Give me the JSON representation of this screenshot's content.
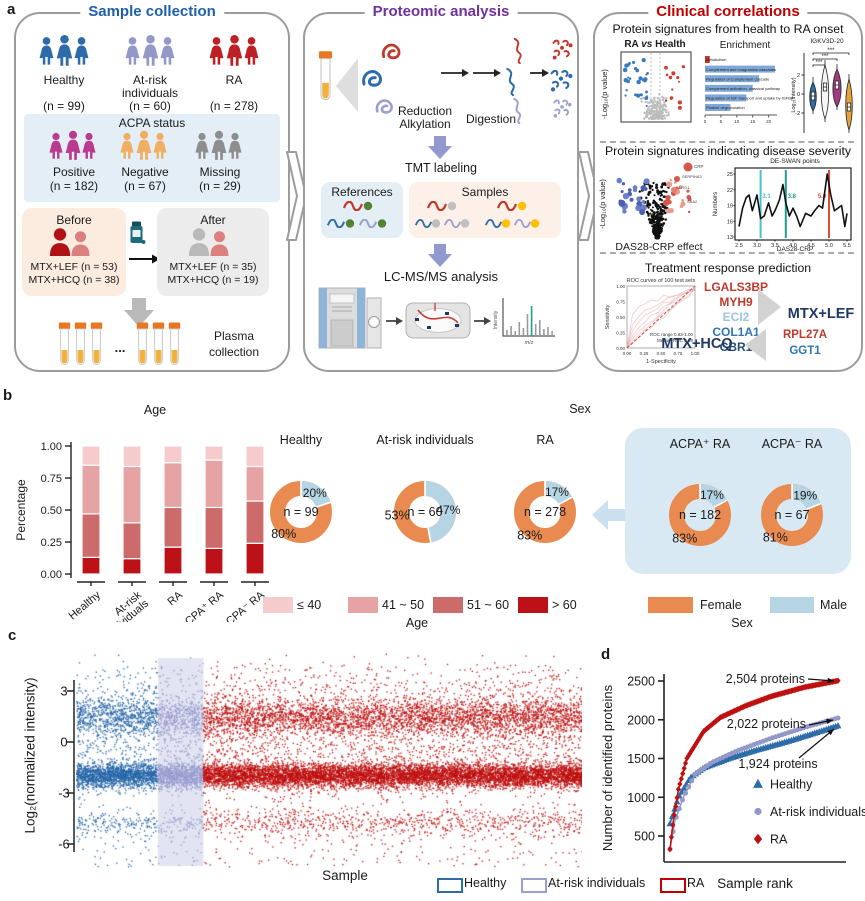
{
  "panels": {
    "a": "a",
    "b": "b",
    "c": "c",
    "d": "d"
  },
  "panel_a": {
    "sample_collection": {
      "title": "Sample collection",
      "accent": "#1d5fae",
      "groups": [
        {
          "label": "Healthy",
          "n": "(n = 99)",
          "color": "#2d6ca8"
        },
        {
          "label": "At-risk",
          "label2": "individuals",
          "n": "(n = 60)",
          "color": "#9398c8"
        },
        {
          "label": "RA",
          "n": "(n = 278)",
          "color": "#bf2026"
        }
      ],
      "acpa": {
        "title": "ACPA status",
        "groups": [
          {
            "label": "Positive",
            "n": "(n = 182)",
            "color": "#b93a8f"
          },
          {
            "label": "Negative",
            "n": "(n = 67)",
            "color": "#efae62"
          },
          {
            "label": "Missing",
            "n": "(n = 29)",
            "color": "#8e8e8e"
          }
        ]
      },
      "before": {
        "title": "Before",
        "line1": "MTX+LEF  (n = 53)",
        "line2": "MTX+HCQ (n = 38)"
      },
      "after": {
        "title": "After",
        "line1": "MTX+LEF  (n = 35)",
        "line2": "MTX+HCQ (n = 19)"
      },
      "dots": "...",
      "plasma1": "Plasma",
      "plasma2": "collection"
    },
    "proteomic": {
      "title": "Proteomic analysis",
      "accent": "#7030a0",
      "step1a": "Reduction",
      "step1b": "Alkylation",
      "step2": "Digestion",
      "tmt": "TMT labeling",
      "references": "References",
      "samples": "Samples",
      "lcms": "LC-MS/MS analysis",
      "spec_y": "Intensity",
      "spec_x": "m/z"
    },
    "clinical": {
      "title": "Clinical correlations",
      "accent": "#c00000",
      "s1_heading": "Protein signatures from health to RA onset",
      "volcano1": {
        "t1": "RA ",
        "t2": "vs",
        "t3": " Health",
        "ylabel": "-Log₁₀(p value)"
      },
      "enrichment": {
        "title": "Enrichment",
        "bars": [
          {
            "label": "Metabolism",
            "value": 1.5
          },
          {
            "label": "Complement and coagulation cascades",
            "value": 22
          },
          {
            "label": "Regulation of Complement cascade",
            "value": 17
          },
          {
            "label": "Complement activation, classical pathway",
            "value": 15
          },
          {
            "label": "Regulation of IGF transport and uptake by IGFBPs",
            "value": 13
          },
          {
            "label": "Platelet degranulation",
            "value": 8
          }
        ],
        "xticks": [
          "0",
          "5",
          "10",
          "15",
          "20"
        ]
      },
      "violin": {
        "title": "IGKV3D-20",
        "ylabel": "Log₂(intensity)",
        "yticks": [
          "2",
          "0",
          "-2"
        ],
        "sig": "***",
        "colors": [
          "#2d6ca8",
          "#f5f5f5",
          "#a23a80",
          "#e5a13e"
        ]
      },
      "s2_heading": "Protein signatures indicating disease severity",
      "volcano2": {
        "xlabel": "DAS28-CRP effect",
        "ylabel": "-Log₁₀(p value)",
        "gene_labels": [
          "CRP",
          "SERPINA3",
          "LRG1",
          "SAA2"
        ]
      },
      "deswan": {
        "title": "DE-SWAN points",
        "ylabel": "Numbers",
        "xlabel": "DAS28-CRP",
        "yticks": [
          13,
          16,
          19,
          22,
          25
        ],
        "xticks": [
          "2.5",
          "3.0",
          "3.5",
          "4.0",
          "4.5",
          "5.0",
          "5.5"
        ],
        "vlines": [
          {
            "x": 3.1,
            "label": "3.1",
            "color": "#49c0d2"
          },
          {
            "x": 3.8,
            "label": "3.8",
            "color": "#1b9e8f"
          },
          {
            "x": 5.0,
            "label": "5.0",
            "color": "#e04b38"
          }
        ],
        "points": [
          [
            2.5,
            15
          ],
          [
            2.6,
            18.5
          ],
          [
            2.7,
            20.5
          ],
          [
            2.78,
            21
          ],
          [
            2.87,
            18
          ],
          [
            3.0,
            21
          ],
          [
            3.1,
            16.5
          ],
          [
            3.2,
            17
          ],
          [
            3.32,
            19.5
          ],
          [
            3.42,
            17
          ],
          [
            3.5,
            18
          ],
          [
            3.62,
            20
          ],
          [
            3.72,
            23
          ],
          [
            3.8,
            19.5
          ],
          [
            3.9,
            17
          ],
          [
            4.0,
            18.5
          ],
          [
            4.1,
            17
          ],
          [
            4.2,
            15
          ],
          [
            4.35,
            17.5
          ],
          [
            4.5,
            17
          ],
          [
            4.6,
            18
          ],
          [
            4.72,
            19
          ],
          [
            4.82,
            18.5
          ],
          [
            4.95,
            25
          ],
          [
            5.05,
            21
          ],
          [
            5.15,
            18
          ],
          [
            5.25,
            18.5
          ],
          [
            5.35,
            19
          ],
          [
            5.44,
            15
          ],
          [
            5.5,
            17.5
          ]
        ]
      },
      "s3_heading": "Treatment response prediction",
      "roc": {
        "title": "ROC curves of 100 test sets",
        "ylabel": "Sensitivity",
        "xlabel": "1-Specificity",
        "yticks": [
          "1.00",
          "0.75",
          "0.50",
          "0.25",
          "0.00"
        ],
        "xticks": [
          "0.00",
          "0.25",
          "0.50",
          "0.75",
          "1.00"
        ],
        "note1": "ROC range 0.63-1.00",
        "note2": "Median ROC 0.88"
      },
      "lef_genes": [
        {
          "name": "LGALS3BP",
          "color": "#c03a2b"
        },
        {
          "name": "MYH9",
          "color": "#c03a2b"
        },
        {
          "name": "ECI2",
          "color": "#9dc3e6"
        },
        {
          "name": "COL1A1",
          "color": "#2e75b6"
        },
        {
          "name": "CBR1",
          "color": "#1f4e79"
        }
      ],
      "lef_label": "MTX+LEF",
      "hcq_label": "MTX+HCQ",
      "hcq_genes": [
        {
          "name": "RPL27A",
          "color": "#c03a2b"
        },
        {
          "name": "GGT1",
          "color": "#2e75b6"
        }
      ],
      "mtx_color": "#1f3864"
    }
  },
  "panel_b": {
    "age_title": "Age",
    "sex_title": "Sex",
    "age_legend": [
      {
        "label": "≤ 40",
        "color": "#f5cbcb"
      },
      {
        "label": "41 ~ 50",
        "color": "#e5a3a3"
      },
      {
        "label": "51 ~ 60",
        "color": "#cd6a6a"
      },
      {
        "label": "> 60",
        "color": "#bb1117"
      }
    ],
    "age_legend_title": "Age",
    "sex_legend": [
      {
        "label": "Female",
        "color": "#e98a51"
      },
      {
        "label": "Male",
        "color": "#b5d5e5"
      }
    ],
    "sex_legend_title": "Sex"
  },
  "panel_c": {
    "ylabel": "Log₂(normalized intensity)",
    "xlabel": "Sample",
    "legend": [
      {
        "label": "Healthy",
        "color": "#2d6ca8"
      },
      {
        "label": "At-risk individuals",
        "color": "#9b9fd0"
      },
      {
        "label": "RA",
        "color": "#c00000"
      }
    ]
  },
  "panel_d": {
    "ylabel": "Number of identified proteins",
    "xlabel": "Sample rank"
  },
  "chart_data": [
    {
      "type": "bar",
      "stacked": true,
      "title": "Age",
      "ylabel": "Percentage",
      "yticks": [
        "0.00",
        "0.25",
        "0.50",
        "0.75",
        "1.00"
      ],
      "categories": [
        "Healthy",
        [
          "At-risk",
          "individuals"
        ],
        "RA",
        "ACPA⁺ RA",
        "ACPA⁻ RA"
      ],
      "series": [
        {
          "name": "> 60",
          "color": "#bb1117",
          "values": [
            0.13,
            0.12,
            0.21,
            0.2,
            0.24
          ]
        },
        {
          "name": "51 ~ 60",
          "color": "#cd6a6a",
          "values": [
            0.34,
            0.28,
            0.31,
            0.32,
            0.33
          ]
        },
        {
          "name": "41 ~ 50",
          "color": "#e5a3a3",
          "values": [
            0.38,
            0.44,
            0.35,
            0.37,
            0.27
          ]
        },
        {
          "name": "≤ 40",
          "color": "#f5cbcb",
          "values": [
            0.15,
            0.16,
            0.13,
            0.11,
            0.16
          ]
        }
      ],
      "ylim": [
        0,
        1
      ]
    },
    {
      "type": "pie",
      "title": "Sex",
      "female_color": "#e98a51",
      "male_color": "#b5d5e5",
      "donuts": [
        {
          "title": "Healthy",
          "n_label": "n = 99",
          "male_pct": 20,
          "female_pct": 80,
          "boxed": false
        },
        {
          "title": "At-risk individuals",
          "n_label": "n = 60",
          "male_pct": 47,
          "female_pct": 53,
          "boxed": false
        },
        {
          "title": "RA",
          "n_label": "n = 278",
          "male_pct": 17,
          "female_pct": 83,
          "boxed": false
        },
        {
          "title": "ACPA⁺ RA",
          "n_label": "n = 182",
          "male_pct": 17,
          "female_pct": 83,
          "boxed": true
        },
        {
          "title": "ACPA⁻ RA",
          "n_label": "n = 67",
          "male_pct": 19,
          "female_pct": 81,
          "boxed": true
        }
      ]
    },
    {
      "type": "scatter",
      "ylabel": "Log₂(normalized intensity)",
      "xlabel": "Sample",
      "yticks": [
        3,
        0,
        -3,
        -6
      ],
      "ylim": [
        -7.5,
        5.0
      ],
      "groups": [
        {
          "name": "Healthy",
          "color": "#2565a8",
          "x_fraction": 0.162
        },
        {
          "name": "At-risk individuals",
          "color": "#989cce",
          "x_fraction": 0.09,
          "band_color": "rgba(160,165,210,0.30)"
        },
        {
          "name": "RA",
          "color": "#bf1010",
          "x_fraction": 0.748
        }
      ],
      "n_sample_columns": 200,
      "bands": [
        {
          "center": -1.95,
          "sd": 0.35,
          "n": 52
        },
        {
          "center": 1.5,
          "sd": 0.55,
          "n": 24
        },
        {
          "center": -0.3,
          "sd": 1.0,
          "n": 7
        },
        {
          "center": -4.7,
          "sd": 0.35,
          "n": 5
        },
        {
          "center": 3.2,
          "sd": 0.5,
          "n": 2
        }
      ],
      "tail_low": {
        "min": -7.3,
        "max": -5.2,
        "p": 0.7
      },
      "tail_high": {
        "min": 3.9,
        "max": 4.6,
        "p": 0.3
      }
    },
    {
      "type": "line",
      "ylabel": "Number of identified proteins",
      "xlabel": "Sample rank",
      "yticks": [
        500,
        1000,
        1500,
        2000,
        2500
      ],
      "series": [
        {
          "name": "Healthy",
          "marker": "triangle",
          "color": "#2d6ca8",
          "n": 99,
          "final": 1924,
          "end_label": "1,924 proteins",
          "points": [
            [
              0,
              660
            ],
            [
              0.05,
              1000
            ],
            [
              0.12,
              1250
            ],
            [
              0.2,
              1380
            ],
            [
              0.35,
              1500
            ],
            [
              0.5,
              1600
            ],
            [
              0.7,
              1720
            ],
            [
              0.85,
              1820
            ],
            [
              1,
              1924
            ]
          ]
        },
        {
          "name": "At-risk individuals",
          "marker": "circle",
          "color": "#9398c8",
          "n": 60,
          "final": 2022,
          "end_label": "2,022 proteins",
          "points": [
            [
              0,
              330
            ],
            [
              0.03,
              700
            ],
            [
              0.08,
              1000
            ],
            [
              0.15,
              1300
            ],
            [
              0.25,
              1450
            ],
            [
              0.4,
              1600
            ],
            [
              0.6,
              1760
            ],
            [
              0.8,
              1900
            ],
            [
              1,
              2022
            ]
          ]
        },
        {
          "name": "RA",
          "marker": "diamond",
          "color": "#bf1010",
          "n": 278,
          "final": 2504,
          "end_label": "2,504 proteins",
          "points": [
            [
              0,
              330
            ],
            [
              0.02,
              700
            ],
            [
              0.05,
              1100
            ],
            [
              0.1,
              1500
            ],
            [
              0.2,
              1850
            ],
            [
              0.3,
              2030
            ],
            [
              0.45,
              2180
            ],
            [
              0.6,
              2300
            ],
            [
              0.8,
              2420
            ],
            [
              1,
              2504
            ]
          ]
        }
      ]
    }
  ]
}
